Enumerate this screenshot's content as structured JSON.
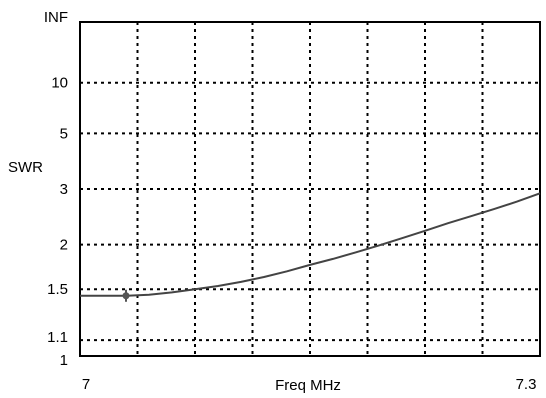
{
  "chart_data": {
    "type": "line",
    "title": "",
    "xlabel": "Freq MHz",
    "ylabel": "SWR",
    "xlim": [
      7,
      7.3
    ],
    "ylim": [
      1,
      "INF"
    ],
    "y_scale": "reflection-coefficient (SWR chart)",
    "grid": true,
    "grid_style": "dotted",
    "x_tick_labels": [
      "7",
      "7.3"
    ],
    "y_tick_labels": [
      "INF",
      "10",
      "5",
      "3",
      "2",
      "1.5",
      "1.1",
      "1"
    ],
    "y_ticks": [
      {
        "label": "INF",
        "value": null
      },
      {
        "label": "10",
        "value": 10
      },
      {
        "label": "5",
        "value": 5
      },
      {
        "label": "3",
        "value": 3
      },
      {
        "label": "2",
        "value": 2
      },
      {
        "label": "1.5",
        "value": 1.5
      },
      {
        "label": "1.1",
        "value": 1.1
      },
      {
        "label": "1",
        "value": 1
      }
    ],
    "series": [
      {
        "x": [
          7.0,
          7.03,
          7.045,
          7.06,
          7.075,
          7.09,
          7.105,
          7.12,
          7.135,
          7.15,
          7.165,
          7.18,
          7.195,
          7.21,
          7.225,
          7.24,
          7.255,
          7.27,
          7.285,
          7.3
        ],
        "y": [
          1.44,
          1.44,
          1.45,
          1.47,
          1.5,
          1.53,
          1.57,
          1.62,
          1.68,
          1.75,
          1.82,
          1.9,
          1.99,
          2.09,
          2.2,
          2.32,
          2.44,
          2.57,
          2.72,
          2.9
        ],
        "marker": {
          "x": 7.03,
          "y": 1.44
        }
      }
    ],
    "colors": {
      "line": "#444444",
      "grid": "#000000",
      "frame": "#000000",
      "marker": "#555555"
    }
  }
}
